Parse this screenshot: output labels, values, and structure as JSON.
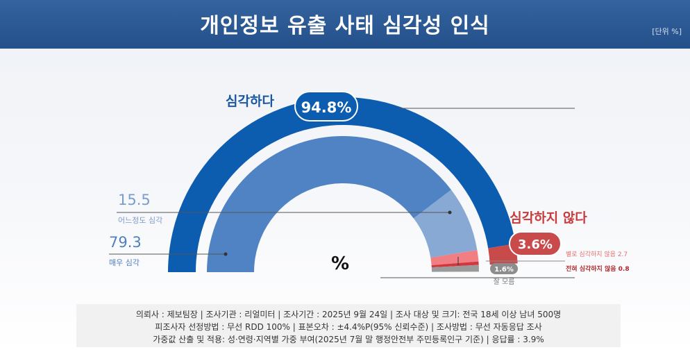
{
  "header": {
    "title": "개인정보 유출 사태 심각성 인식",
    "unit": "[단위 %]"
  },
  "chart_data": {
    "type": "pie",
    "title": "개인정보 유출 사태 심각성 인식",
    "unit_symbol": "%",
    "groups": [
      {
        "name": "심각하다",
        "total_label": "94.8%",
        "value": 94.8,
        "color": "#0c5cb0"
      },
      {
        "name": "심각하지 않다",
        "total_label": "3.6%",
        "value": 3.6,
        "color": "#c94a4a"
      }
    ],
    "segments": [
      {
        "name": "매우 심각",
        "value": 79.3,
        "value_label": "79.3",
        "color": "#4f83c4"
      },
      {
        "name": "어느정도 심각",
        "value": 15.5,
        "value_label": "15.5",
        "color": "#88a9d4"
      },
      {
        "name": "별로 심각하지 않음",
        "value": 2.7,
        "value_label": "별로 심각하지 않음 2.7",
        "color": "#f07e82"
      },
      {
        "name": "전혀 심각하지 않음",
        "value": 0.8,
        "value_label": "전혀 심각하지 않음 0.8",
        "color": "#d1373d"
      },
      {
        "name": "잘 모름",
        "value": 1.6,
        "value_label": "1.6%",
        "color": "#9a9a9a"
      }
    ]
  },
  "footer": {
    "line1": "의뢰사 : 제보팀장 | 조사기관 : 리얼미터  |  조사기간 : 2025년 9월 24일 | 조사 대상 및 크기: 전국 18세 이상 남녀 500명",
    "line2": "피조사자 선정방법 : 무선 RDD 100% | 표본오차 : ±4.4%P(95% 신뢰수준) | 조사방법 : 무선 자동응답 조사",
    "line3": "가중값 산출 및 적용: 성·연령·지역별 가중 부여(2025년 7월 말 행정안전부 주민등록인구 기준) | 응답률 : 3.9%"
  }
}
